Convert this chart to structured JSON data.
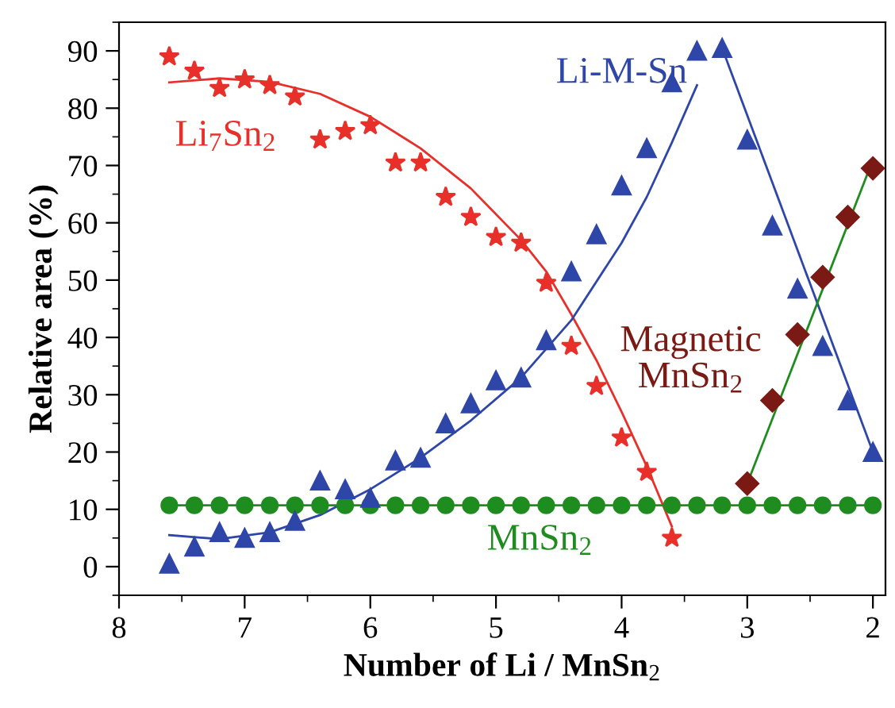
{
  "chart_data": {
    "type": "scatter",
    "xlabel": "Number of Li / MnSn$_{2}$",
    "ylabel": "Relative area (%)",
    "xlim": [
      8,
      1.9
    ],
    "ylim": [
      -5,
      95
    ],
    "xticks": [
      8,
      7,
      6,
      5,
      4,
      3,
      2
    ],
    "yticks": [
      0,
      10,
      20,
      30,
      40,
      50,
      60,
      70,
      80,
      90
    ],
    "grid": false,
    "legend": false,
    "series": [
      {
        "name": "Li$_{7}$Sn$_{2}$",
        "marker": "star",
        "color": "#e8302a",
        "x": [
          7.6,
          7.4,
          7.2,
          7.0,
          6.8,
          6.6,
          6.4,
          6.2,
          6.0,
          5.8,
          5.6,
          5.4,
          5.2,
          5.0,
          4.8,
          4.6,
          4.4,
          4.2,
          4.0,
          3.8,
          3.6
        ],
        "values": [
          89,
          86.5,
          83.5,
          85,
          84,
          82,
          74.5,
          76,
          77,
          70.5,
          70.5,
          64.5,
          61,
          57.5,
          56.5,
          49.5,
          38.5,
          31.5,
          22.5,
          16.5,
          5
        ]
      },
      {
        "name": "Li-M-Sn",
        "marker": "triangle",
        "color": "#2e46a8",
        "x": [
          7.6,
          7.4,
          7.2,
          7.0,
          6.8,
          6.6,
          6.4,
          6.2,
          6.0,
          5.8,
          5.6,
          5.4,
          5.2,
          5.0,
          4.8,
          4.6,
          4.4,
          4.2,
          4.0,
          3.8,
          3.6,
          3.4,
          3.2,
          3.0,
          2.8,
          2.6,
          2.4,
          2.2,
          2.0
        ],
        "values": [
          0.5,
          3.5,
          6,
          5,
          6,
          8,
          15,
          13.5,
          12,
          18.5,
          19,
          25,
          28.5,
          32.5,
          33,
          39.5,
          51.5,
          58,
          66.5,
          73,
          84.5,
          90,
          90.5,
          74.5,
          59.5,
          48.5,
          38.5,
          29,
          20
        ]
      },
      {
        "name": "Magnetic\nMnSn$_{2}$",
        "marker": "diamond",
        "color": "#7b1a14",
        "x": [
          3.0,
          2.8,
          2.6,
          2.4,
          2.2,
          2.0
        ],
        "values": [
          14.5,
          29,
          40.5,
          50.5,
          61,
          69.5
        ]
      },
      {
        "name": "MnSn$_{2}$",
        "marker": "circle",
        "color": "#1e8c1e",
        "x": [
          7.6,
          7.4,
          7.2,
          7.0,
          6.8,
          6.6,
          6.4,
          6.2,
          6.0,
          5.8,
          5.6,
          5.4,
          5.2,
          5.0,
          4.8,
          4.6,
          4.4,
          4.2,
          4.0,
          3.8,
          3.6,
          3.4,
          3.2,
          3.0,
          2.8,
          2.6,
          2.4,
          2.2,
          2.0
        ],
        "values": [
          10.7,
          10.7,
          10.7,
          10.7,
          10.7,
          10.7,
          10.7,
          10.7,
          10.7,
          10.7,
          10.7,
          10.7,
          10.7,
          10.7,
          10.7,
          10.7,
          10.7,
          10.7,
          10.7,
          10.7,
          10.7,
          10.7,
          10.7,
          10.7,
          10.7,
          10.7,
          10.7,
          10.7,
          10.7
        ]
      },
      {
        "type": "line",
        "color": "#e8302a",
        "x": [
          7.6,
          7.2,
          6.8,
          6.4,
          6.0,
          5.6,
          5.2,
          4.8,
          4.6,
          4.4,
          4.2,
          4.0,
          3.8,
          3.6
        ],
        "values": [
          84.5,
          85.2,
          84.6,
          82.5,
          78.5,
          73,
          66,
          57,
          51.5,
          44,
          36,
          27,
          17.5,
          7
        ]
      },
      {
        "type": "line",
        "color": "#2e46a8",
        "x": [
          7.6,
          7.2,
          6.8,
          6.4,
          6.0,
          5.6,
          5.2,
          4.8,
          4.4,
          4.0,
          3.8,
          3.6,
          3.4
        ],
        "values": [
          5.5,
          4.8,
          6,
          9,
          13.5,
          19,
          25.5,
          33,
          43,
          56.5,
          64.5,
          74,
          84
        ]
      },
      {
        "type": "line",
        "color": "#2e46a8",
        "x": [
          3.2,
          2.0
        ],
        "values": [
          90.5,
          20
        ]
      },
      {
        "type": "line",
        "color": "#1e8c1e",
        "x": [
          3.0,
          2.0
        ],
        "values": [
          14.5,
          71
        ]
      },
      {
        "type": "line",
        "color": "#1e8c1e",
        "x": [
          7.6,
          2.0
        ],
        "values": [
          10.7,
          10.7
        ]
      }
    ]
  }
}
